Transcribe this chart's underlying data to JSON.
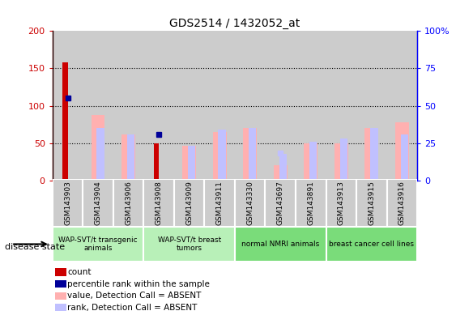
{
  "title": "GDS2514 / 1432052_at",
  "samples": [
    "GSM143903",
    "GSM143904",
    "GSM143906",
    "GSM143908",
    "GSM143909",
    "GSM143911",
    "GSM143330",
    "GSM143697",
    "GSM143891",
    "GSM143913",
    "GSM143915",
    "GSM143916"
  ],
  "count_values": [
    158,
    0,
    0,
    50,
    0,
    0,
    0,
    0,
    0,
    0,
    0,
    0
  ],
  "percentile_rank_values": [
    110,
    0,
    0,
    62,
    0,
    0,
    0,
    0,
    0,
    0,
    0,
    0
  ],
  "value_absent": [
    0,
    88,
    62,
    0,
    46,
    65,
    70,
    20,
    50,
    50,
    70,
    78
  ],
  "rank_absent": [
    0,
    70,
    62,
    0,
    46,
    68,
    70,
    36,
    52,
    56,
    70,
    62
  ],
  "rank_absent_marker": [
    0,
    0,
    0,
    0,
    0,
    0,
    0,
    37,
    0,
    0,
    0,
    0
  ],
  "groups": [
    {
      "label": "WAP-SVT/t transgenic\nanimals",
      "start": 0,
      "end": 3,
      "color": "#b8f0b8"
    },
    {
      "label": "WAP-SVT/t breast\ntumors",
      "start": 3,
      "end": 6,
      "color": "#b8f0b8"
    },
    {
      "label": "normal NMRI animals",
      "start": 6,
      "end": 9,
      "color": "#7adc7a"
    },
    {
      "label": "breast cancer cell lines",
      "start": 9,
      "end": 12,
      "color": "#7adc7a"
    }
  ],
  "ylim_left": [
    0,
    200
  ],
  "ylim_right": [
    0,
    100
  ],
  "yticks_left": [
    0,
    50,
    100,
    150,
    200
  ],
  "yticks_right": [
    0,
    25,
    50,
    75,
    100
  ],
  "yticklabels_right": [
    "0",
    "25",
    "50",
    "75",
    "100%"
  ],
  "color_count": "#cc0000",
  "color_percentile": "#000099",
  "color_value_absent": "#ffb0b0",
  "color_rank_absent": "#c0c0ff",
  "bg_color_samples": "#cccccc",
  "legend_items": [
    {
      "label": "count",
      "color": "#cc0000",
      "marker": "s"
    },
    {
      "label": "percentile rank within the sample",
      "color": "#000099",
      "marker": "s"
    },
    {
      "label": "value, Detection Call = ABSENT",
      "color": "#ffb0b0",
      "marker": "s"
    },
    {
      "label": "rank, Detection Call = ABSENT",
      "color": "#c0c0ff",
      "marker": "s"
    }
  ]
}
